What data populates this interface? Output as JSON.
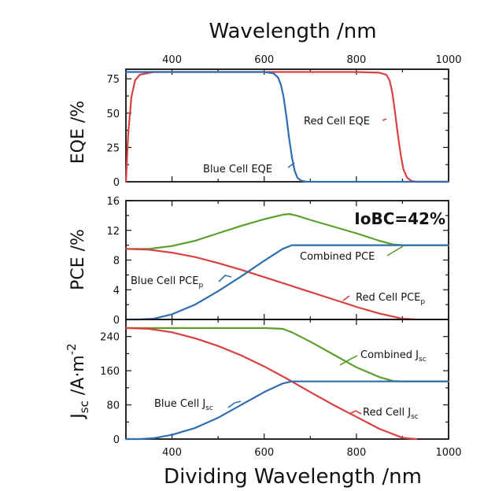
{
  "chart_data": [
    {
      "type": "line",
      "panel": "eqe",
      "ylabel": "EQE /%",
      "top_xlabel": "Wavelength /nm",
      "xlim": [
        300,
        1000
      ],
      "ylim": [
        0,
        82
      ],
      "x_ticks": [
        "400",
        "600",
        "800",
        "1000"
      ],
      "y_ticks": [
        "0",
        "25",
        "50",
        "75"
      ],
      "series": [
        {
          "name": "Red Cell EQE",
          "color": "#d94040",
          "x": [
            300,
            305,
            312,
            320,
            330,
            345,
            360,
            400,
            600,
            800,
            850,
            865,
            872,
            878,
            884,
            890,
            896,
            902,
            910,
            920,
            930,
            1000
          ],
          "y": [
            0,
            35,
            62,
            74,
            78,
            79,
            80,
            80,
            80,
            80,
            79.5,
            78,
            74,
            65,
            50,
            34,
            20,
            9,
            3,
            0.5,
            0,
            0
          ]
        },
        {
          "name": "Blue Cell EQE",
          "color": "#2f6db0",
          "x": [
            300,
            600,
            620,
            630,
            636,
            642,
            648,
            654,
            660,
            666,
            672,
            680,
            690,
            700,
            1000
          ],
          "y": [
            80,
            80,
            79,
            76,
            71,
            62,
            48,
            32,
            18,
            8,
            3,
            0.8,
            0.1,
            0,
            0
          ]
        }
      ]
    },
    {
      "type": "line",
      "panel": "pce",
      "ylabel": "PCE /%",
      "xlim": [
        300,
        1000
      ],
      "ylim": [
        0,
        16
      ],
      "y_ticks": [
        "0",
        "4",
        "8",
        "12",
        "16"
      ],
      "badge": "IoBC=42%",
      "series": [
        {
          "name": "Combined PCE",
          "color": "#5aa02c",
          "x": [
            300,
            350,
            400,
            450,
            500,
            550,
            600,
            640,
            655,
            670,
            700,
            750,
            800,
            850,
            880,
            900,
            1000
          ],
          "y": [
            9.5,
            9.5,
            9.9,
            10.6,
            11.6,
            12.6,
            13.5,
            14.1,
            14.2,
            14.0,
            13.4,
            12.5,
            11.6,
            10.6,
            10.1,
            10.0,
            10.0
          ]
        },
        {
          "name": "Red Cell PCE",
          "color": "#d94040",
          "x": [
            300,
            350,
            400,
            450,
            500,
            550,
            600,
            650,
            700,
            750,
            800,
            850,
            900,
            930
          ],
          "y": [
            9.5,
            9.4,
            9.0,
            8.4,
            7.6,
            6.7,
            5.7,
            4.7,
            3.7,
            2.7,
            1.7,
            0.8,
            0.1,
            0
          ]
        },
        {
          "name": "Blue Cell PCE",
          "color": "#2f6db0",
          "x": [
            300,
            330,
            360,
            400,
            450,
            500,
            550,
            600,
            640,
            660,
            680,
            700,
            1000
          ],
          "y": [
            0,
            0,
            0.1,
            0.7,
            2.0,
            3.8,
            5.8,
            7.9,
            9.5,
            10.0,
            10.0,
            10.0,
            10.0
          ]
        }
      ]
    },
    {
      "type": "line",
      "panel": "jsc",
      "ylabel": "Jsc /A·m-2",
      "xlabel": "Dividing Wavelength /nm",
      "xlim": [
        300,
        1000
      ],
      "ylim": [
        0,
        280
      ],
      "x_ticks": [
        "400",
        "600",
        "800",
        "1000"
      ],
      "y_ticks": [
        "0",
        "80",
        "160",
        "240"
      ],
      "series": [
        {
          "name": "Combined Jsc",
          "color": "#5aa02c",
          "x": [
            300,
            400,
            500,
            600,
            640,
            660,
            700,
            750,
            800,
            850,
            880,
            900,
            1000
          ],
          "y": [
            260,
            260,
            260,
            260,
            258,
            250,
            228,
            198,
            168,
            145,
            136,
            135,
            135
          ]
        },
        {
          "name": "Red Cell Jsc",
          "color": "#d94040",
          "x": [
            300,
            350,
            400,
            450,
            500,
            550,
            600,
            650,
            700,
            750,
            800,
            850,
            900,
            930
          ],
          "y": [
            260,
            258,
            250,
            236,
            218,
            196,
            170,
            141,
            110,
            80,
            52,
            24,
            3,
            0
          ]
        },
        {
          "name": "Blue Cell Jsc",
          "color": "#2f6db0",
          "x": [
            300,
            330,
            360,
            400,
            450,
            500,
            550,
            600,
            640,
            660,
            700,
            1000
          ],
          "y": [
            0,
            0,
            2,
            10,
            26,
            50,
            80,
            110,
            130,
            135,
            135,
            135
          ]
        }
      ]
    }
  ],
  "labels": {
    "top_title": "Wavelength /nm",
    "bottom_title": "Dividing Wavelength /nm",
    "eqe_ylabel": "EQE /%",
    "pce_ylabel": "PCE /%",
    "jsc_ylabel_main": "J",
    "jsc_ylabel_sub": "sc",
    "jsc_ylabel_unit": " /A·m",
    "jsc_ylabel_sup": "-2",
    "badge": "IoBC=42%"
  },
  "annotations": {
    "red_eqe": "Red Cell EQE",
    "blue_eqe": "Blue Cell EQE",
    "combined_pce": "Combined PCE",
    "blue_pce": "Blue Cell PCE",
    "blue_pce_sub": "p",
    "red_pce": "Red Cell PCE",
    "red_pce_sub": "p",
    "combined_jsc": "Combined J",
    "combined_jsc_sub": "sc",
    "blue_jsc": "Blue Cell J",
    "blue_jsc_sub": "sc",
    "red_jsc": "Red Cell J",
    "red_jsc_sub": "sc"
  },
  "colors": {
    "red": "#d94040",
    "blue": "#2f6db0",
    "green": "#5aa02c",
    "axis": "#111111"
  }
}
